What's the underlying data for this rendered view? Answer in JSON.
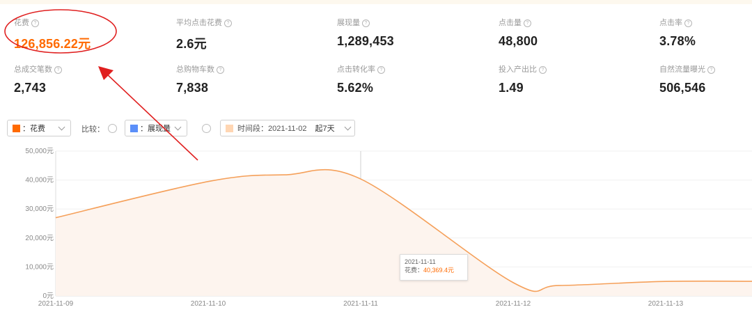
{
  "metrics": [
    {
      "label": "花费",
      "value": "126,856.22元",
      "accent": true
    },
    {
      "label": "平均点击花费",
      "value": "2.6元"
    },
    {
      "label": "展现量",
      "value": "1,289,453"
    },
    {
      "label": "点击量",
      "value": "48,800"
    },
    {
      "label": "点击率",
      "value": "3.78%"
    },
    {
      "label": "总成交笔数",
      "value": "2,743"
    },
    {
      "label": "总购物车数",
      "value": "7,838"
    },
    {
      "label": "点击转化率",
      "value": "5.62%"
    },
    {
      "label": "投入产出比",
      "value": "1.49"
    },
    {
      "label": "自然流量曝光",
      "value": "506,546"
    }
  ],
  "help_glyph": "?",
  "controls": {
    "metric_select": {
      "label": "：花费",
      "color": "#ff6a00"
    },
    "compare_label": "比较：",
    "compare_select": {
      "label": "：展现量",
      "color": "#5b8ff9"
    },
    "period_select": {
      "label": "时间段：2021-11-02",
      "suffix": "起7天",
      "color": "#ffd6b3"
    }
  },
  "chart_data": {
    "type": "area",
    "x": [
      "2021-11-09",
      "2021-11-10",
      "2021-11-11",
      "2021-11-12",
      "2021-11-13"
    ],
    "series": [
      {
        "name": "花费",
        "color": "#f5a05a",
        "points": [
          {
            "x": "2021-11-09",
            "y": 27000
          },
          {
            "x": "2021-11-10",
            "y": 39500
          },
          {
            "x": "2021-11-10.5",
            "y": 41800
          },
          {
            "x": "2021-11-11",
            "y": 40369.4
          },
          {
            "x": "2021-11-12",
            "y": 4600
          },
          {
            "x": "2021-11-12.3",
            "y": 3600
          },
          {
            "x": "2021-11-13",
            "y": 5000
          },
          {
            "x": "2021-11-13.7",
            "y": 5000
          }
        ]
      }
    ],
    "yticks": [
      "0元",
      "10,000元",
      "20,000元",
      "30,000元",
      "40,000元",
      "50,000元"
    ],
    "ylim": [
      0,
      50000
    ]
  },
  "tooltip": {
    "date": "2021-11-11",
    "label": "花费：",
    "value": "40,369.4元"
  }
}
